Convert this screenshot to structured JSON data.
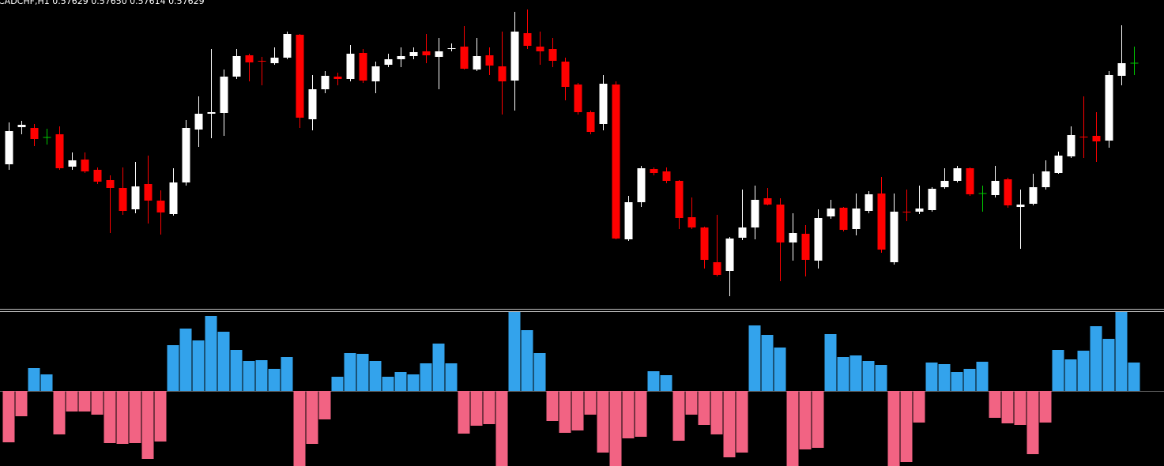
{
  "chart_data": [
    {
      "type": "candlestick",
      "title": "CADCHF,H1  0.57629 0.57650 0.57614 0.57629",
      "ylim": [
        0.57319,
        0.57709
      ],
      "up_color": "#ffffff",
      "down_color": "#ff0000",
      "doji_color": "#00c800",
      "open": [
        0.57501,
        0.57548,
        0.57547,
        0.57535,
        0.57539,
        0.57498,
        0.57507,
        0.57494,
        0.57481,
        0.57471,
        0.57444,
        0.57476,
        0.57455,
        0.57438,
        0.57478,
        0.57545,
        0.57565,
        0.57566,
        0.57612,
        0.57639,
        0.57632,
        0.57629,
        0.57636,
        0.57665,
        0.57558,
        0.57596,
        0.57612,
        0.57609,
        0.57642,
        0.57606,
        0.57627,
        0.57634,
        0.57638,
        0.57644,
        0.57637,
        0.57647,
        0.5765,
        0.57621,
        0.57639,
        0.57625,
        0.57607,
        0.57667,
        0.5765,
        0.57647,
        0.57631,
        0.57602,
        0.57567,
        0.57552,
        0.57602,
        0.57406,
        0.57453,
        0.57495,
        0.57492,
        0.5748,
        0.57434,
        0.57421,
        0.57377,
        0.57366,
        0.57408,
        0.57421,
        0.57458,
        0.5745,
        0.57402,
        0.57413,
        0.57379,
        0.57435,
        0.57446,
        0.57419,
        0.57442,
        0.57464,
        0.57377,
        0.57441,
        0.57441,
        0.57443,
        0.57472,
        0.5748,
        0.57496,
        0.57464,
        0.57462,
        0.57482,
        0.57447,
        0.57451,
        0.57472,
        0.5749,
        0.57511,
        0.57536,
        0.57537,
        0.57531,
        0.57613,
        0.57629
      ],
      "high": [
        0.57554,
        0.57556,
        0.57552,
        0.57546,
        0.57549,
        0.57516,
        0.57516,
        0.57497,
        0.57487,
        0.57497,
        0.57504,
        0.57512,
        0.57468,
        0.57496,
        0.57557,
        0.57587,
        0.57647,
        0.57621,
        0.57647,
        0.57641,
        0.57637,
        0.57649,
        0.57669,
        0.57666,
        0.57614,
        0.57619,
        0.57617,
        0.57652,
        0.57647,
        0.57631,
        0.57641,
        0.57649,
        0.57649,
        0.57666,
        0.57661,
        0.57654,
        0.57676,
        0.57661,
        0.57649,
        0.57669,
        0.57694,
        0.57697,
        0.57669,
        0.57661,
        0.57636,
        0.57604,
        0.57569,
        0.57614,
        0.57606,
        0.57461,
        0.57499,
        0.57497,
        0.57497,
        0.57481,
        0.57459,
        0.57422,
        0.57437,
        0.57409,
        0.57469,
        0.57474,
        0.57471,
        0.57458,
        0.57439,
        0.57424,
        0.57444,
        0.57456,
        0.57447,
        0.57464,
        0.57467,
        0.57485,
        0.57464,
        0.57469,
        0.57474,
        0.57472,
        0.57496,
        0.57499,
        0.57497,
        0.57474,
        0.57499,
        0.57484,
        0.57469,
        0.57489,
        0.57506,
        0.57517,
        0.57549,
        0.57587,
        0.57567,
        0.57619,
        0.57677,
        0.5765
      ],
      "low": [
        0.57494,
        0.57539,
        0.57524,
        0.57526,
        0.57494,
        0.57494,
        0.5749,
        0.57476,
        0.57414,
        0.57437,
        0.57439,
        0.57426,
        0.57412,
        0.57436,
        0.57474,
        0.57523,
        0.57534,
        0.57537,
        0.57609,
        0.57606,
        0.57601,
        0.57627,
        0.57634,
        0.57547,
        0.57544,
        0.57591,
        0.57601,
        0.57606,
        0.57604,
        0.57591,
        0.57624,
        0.57624,
        0.57634,
        0.57629,
        0.57596,
        0.57644,
        0.57621,
        0.57619,
        0.57614,
        0.57564,
        0.57569,
        0.57647,
        0.57627,
        0.57624,
        0.57582,
        0.57564,
        0.57539,
        0.57544,
        0.57406,
        0.57404,
        0.57447,
        0.57487,
        0.57477,
        0.57419,
        0.57419,
        0.57369,
        0.57359,
        0.57334,
        0.57405,
        0.57406,
        0.57449,
        0.57353,
        0.57379,
        0.57359,
        0.57369,
        0.57432,
        0.57416,
        0.57411,
        0.57439,
        0.57389,
        0.57374,
        0.57429,
        0.57438,
        0.57441,
        0.5747,
        0.57478,
        0.57461,
        0.57441,
        0.57459,
        0.57446,
        0.57394,
        0.57449,
        0.57469,
        0.57489,
        0.57509,
        0.57509,
        0.57504,
        0.57522,
        0.57601,
        0.57614
      ],
      "close": [
        0.57543,
        0.57551,
        0.57533,
        0.57535,
        0.57496,
        0.57506,
        0.57492,
        0.57479,
        0.57471,
        0.57442,
        0.57473,
        0.57455,
        0.5744,
        0.57478,
        0.57547,
        0.57565,
        0.57567,
        0.57612,
        0.57638,
        0.5763,
        0.57631,
        0.57636,
        0.57666,
        0.5756,
        0.57596,
        0.57613,
        0.57609,
        0.57641,
        0.57607,
        0.57625,
        0.57634,
        0.57638,
        0.57643,
        0.57639,
        0.57644,
        0.57648,
        0.57622,
        0.57638,
        0.57626,
        0.57606,
        0.57669,
        0.57651,
        0.57644,
        0.57632,
        0.57599,
        0.57567,
        0.57542,
        0.57603,
        0.57407,
        0.57453,
        0.57496,
        0.5749,
        0.5748,
        0.57433,
        0.57421,
        0.5738,
        0.57361,
        0.57407,
        0.57421,
        0.57456,
        0.5745,
        0.57402,
        0.57414,
        0.5738,
        0.57433,
        0.57445,
        0.57418,
        0.57445,
        0.57463,
        0.57393,
        0.57441,
        0.5744,
        0.57445,
        0.5747,
        0.5748,
        0.57496,
        0.57463,
        0.57464,
        0.5748,
        0.57449,
        0.5745,
        0.57472,
        0.57492,
        0.57512,
        0.57538,
        0.57535,
        0.5753,
        0.57614,
        0.57629,
        0.57629
      ]
    },
    {
      "type": "bar",
      "ylim": [
        -95,
        100
      ],
      "positive_color": "#33a3ec",
      "negative_color": "#f26383",
      "values": [
        -65,
        -32,
        29,
        21,
        -55,
        -26,
        -26,
        -30,
        -66,
        -67,
        -66,
        -86,
        -64,
        58,
        79,
        64,
        95,
        75,
        52,
        38,
        39,
        28,
        43,
        -95,
        -67,
        -36,
        18,
        48,
        47,
        38,
        18,
        24,
        21,
        35,
        60,
        35,
        -54,
        -44,
        -42,
        -95,
        100,
        77,
        48,
        -38,
        -53,
        -50,
        -30,
        -78,
        -95,
        -60,
        -58,
        25,
        20,
        -63,
        -30,
        -43,
        -55,
        -84,
        -78,
        83,
        71,
        55,
        -95,
        -74,
        -72,
        72,
        43,
        45,
        38,
        33,
        -95,
        -90,
        -40,
        36,
        34,
        24,
        28,
        37,
        -34,
        -41,
        -43,
        -80,
        -40,
        52,
        40,
        51,
        82,
        66,
        100,
        36
      ]
    }
  ]
}
